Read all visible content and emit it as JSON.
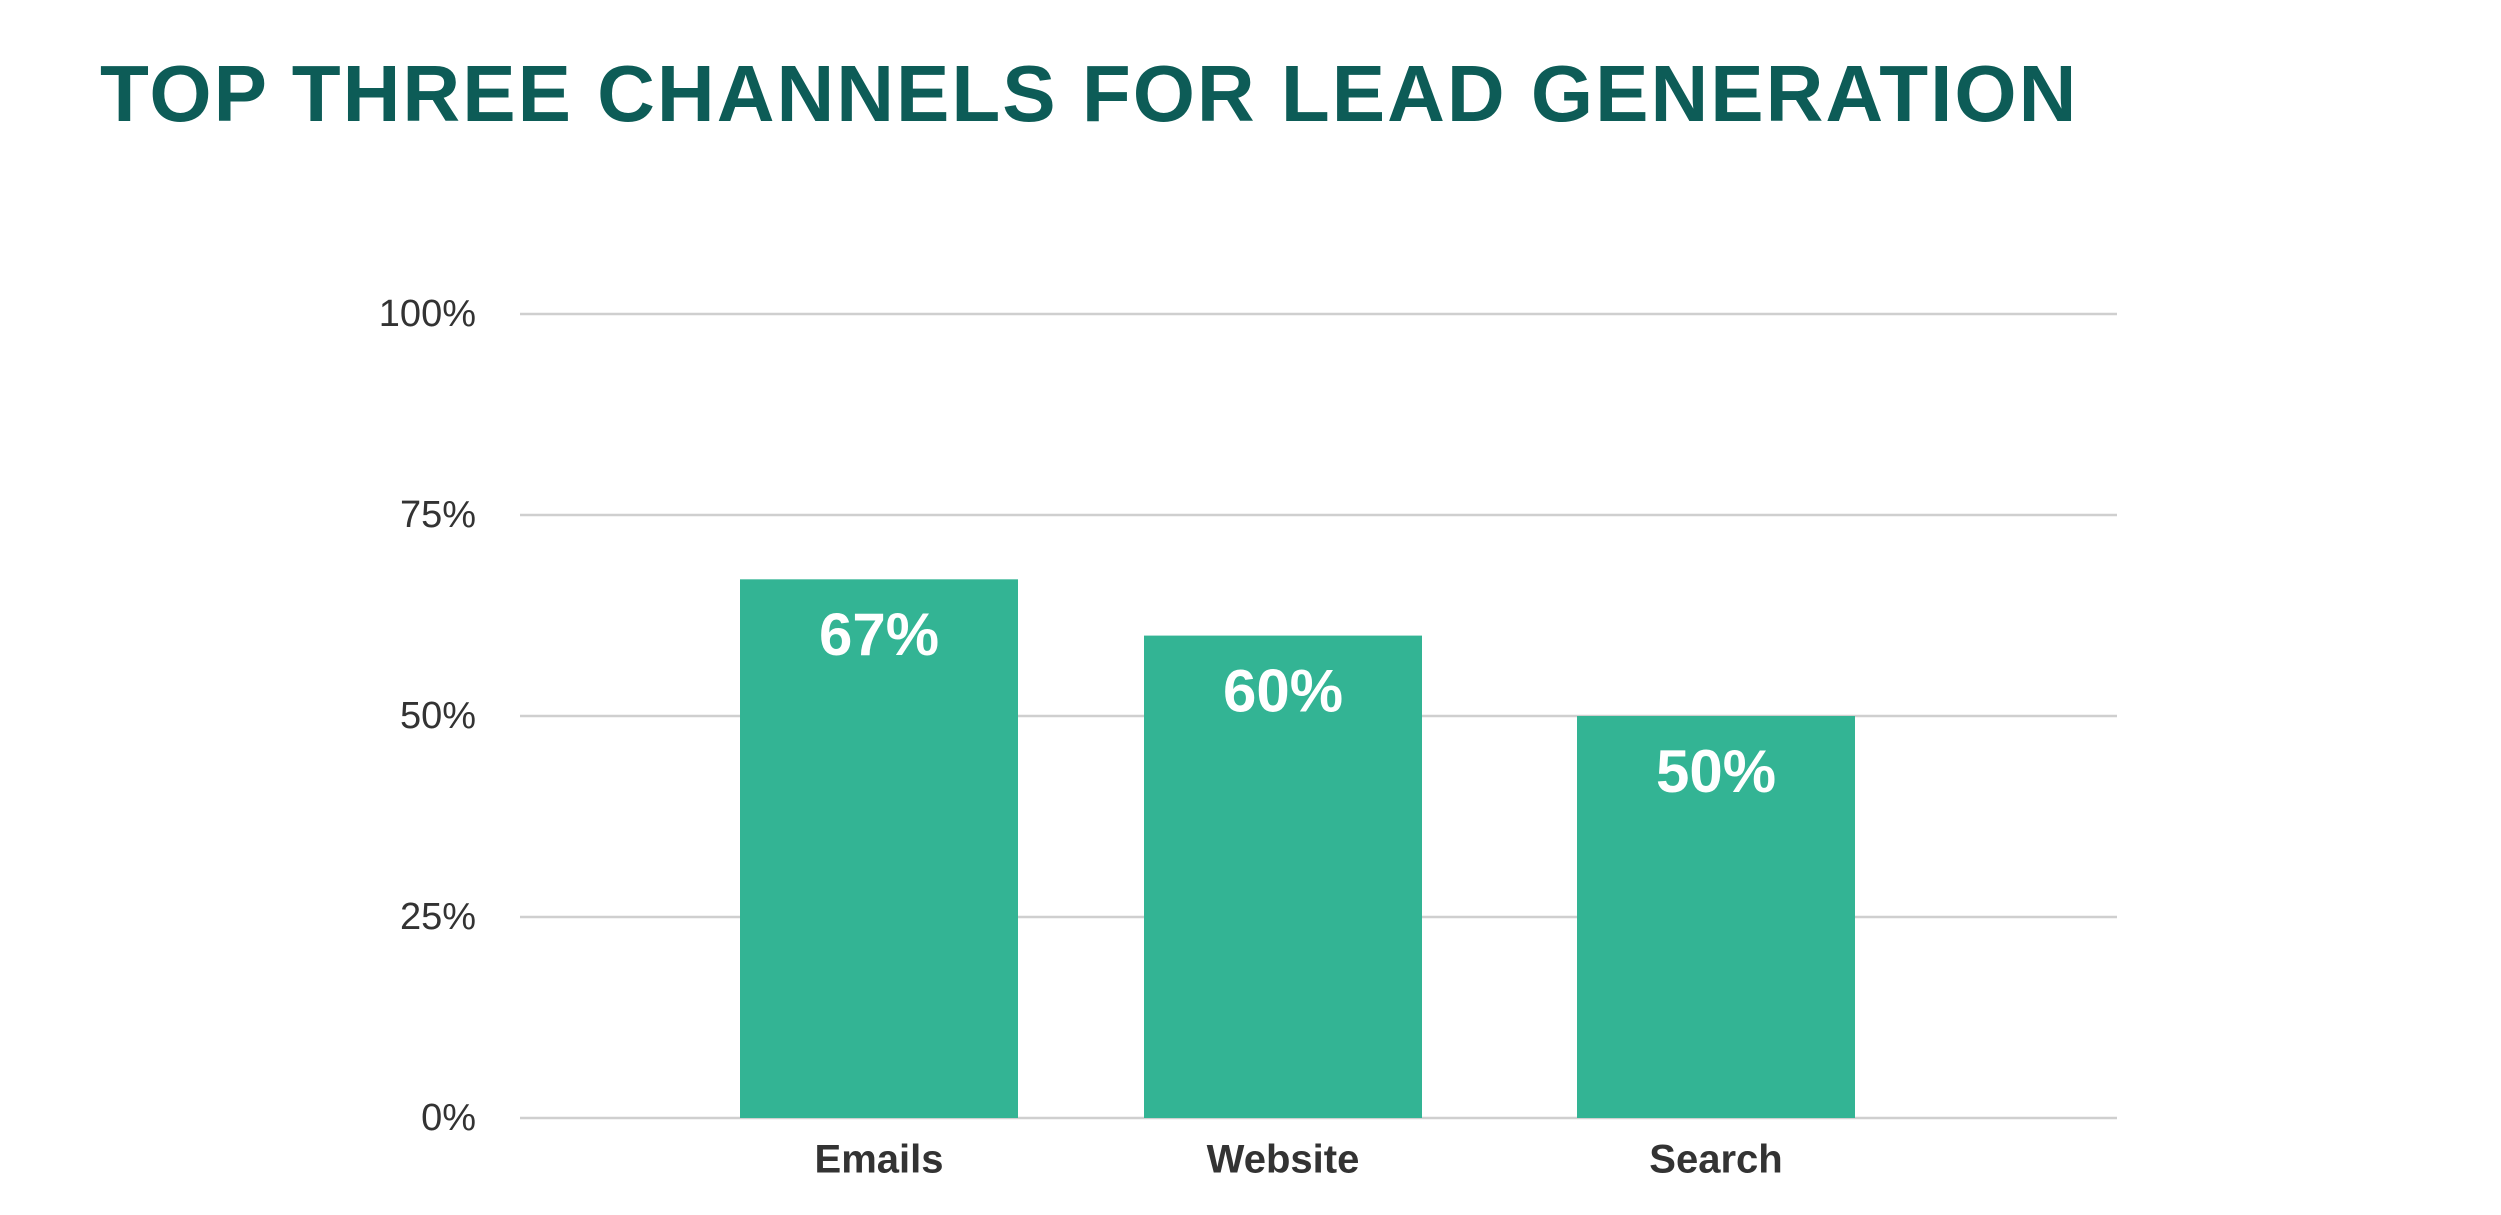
{
  "chart_data": {
    "type": "bar",
    "title": "TOP THREE CHANNELS FOR LEAD GENERATION",
    "categories": [
      "Emails",
      "Website",
      "Search"
    ],
    "values": [
      67,
      60,
      50
    ],
    "value_labels": [
      "67%",
      "60%",
      "50%"
    ],
    "color": "#33b494",
    "ylim": [
      0,
      100
    ],
    "yticks": [
      {
        "value": 0,
        "label": "0%"
      },
      {
        "value": 25,
        "label": "25%"
      },
      {
        "value": 50,
        "label": "50%"
      },
      {
        "value": 75,
        "label": "75%"
      },
      {
        "value": 100,
        "label": "100%"
      }
    ],
    "grid": true
  }
}
